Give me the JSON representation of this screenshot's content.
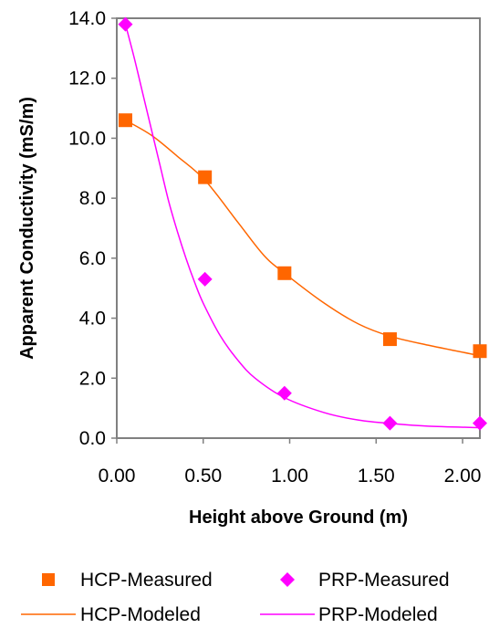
{
  "chart_data": {
    "type": "scatter",
    "title": "",
    "xlabel": "Height above Ground (m)",
    "ylabel": "Apparent Conductivity (mS/m)",
    "xlim": [
      0,
      2.1
    ],
    "ylim": [
      0,
      14
    ],
    "x_ticks": [
      0,
      0.5,
      1.0,
      1.5,
      2.0
    ],
    "x_tick_labels": [
      "0.00",
      "0.50",
      "1.00",
      "1.50",
      "2.00"
    ],
    "y_ticks": [
      0,
      2,
      4,
      6,
      8,
      10,
      12,
      14
    ],
    "y_tick_labels": [
      "0.0",
      "2.0",
      "4.0",
      "6.0",
      "8.0",
      "10.0",
      "12.0",
      "14.0"
    ],
    "grid": false,
    "legend_position": "bottom",
    "series": [
      {
        "name": "HCP-Measured",
        "kind": "markers",
        "marker": "square",
        "color": "#ff6600",
        "x": [
          0.05,
          0.51,
          0.97,
          1.58,
          2.1
        ],
        "y": [
          10.6,
          8.7,
          5.5,
          3.3,
          2.9
        ]
      },
      {
        "name": "PRP-Measured",
        "kind": "markers",
        "marker": "diamond",
        "color": "#ff00ff",
        "x": [
          0.05,
          0.51,
          0.97,
          1.58,
          2.1
        ],
        "y": [
          13.8,
          5.3,
          1.5,
          0.5,
          0.5
        ]
      },
      {
        "name": "HCP-Modeled",
        "kind": "line",
        "color": "#ff6600",
        "x": [
          0.05,
          0.2,
          0.35,
          0.51,
          0.7,
          0.85,
          0.97,
          1.2,
          1.4,
          1.58,
          1.8,
          2.1
        ],
        "y": [
          10.6,
          10.1,
          9.4,
          8.6,
          7.2,
          6.1,
          5.5,
          4.5,
          3.8,
          3.4,
          3.1,
          2.75
        ]
      },
      {
        "name": "PRP-Modeled",
        "kind": "line",
        "color": "#ff00ff",
        "x": [
          0.05,
          0.1,
          0.15,
          0.2,
          0.25,
          0.3,
          0.35,
          0.4,
          0.45,
          0.5,
          0.6,
          0.7,
          0.8,
          0.97,
          1.2,
          1.4,
          1.6,
          1.8,
          2.1
        ],
        "y": [
          13.8,
          12.7,
          11.5,
          10.3,
          9.1,
          7.9,
          6.9,
          6.0,
          5.2,
          4.5,
          3.4,
          2.6,
          2.0,
          1.35,
          0.85,
          0.6,
          0.48,
          0.4,
          0.35
        ]
      }
    ]
  }
}
